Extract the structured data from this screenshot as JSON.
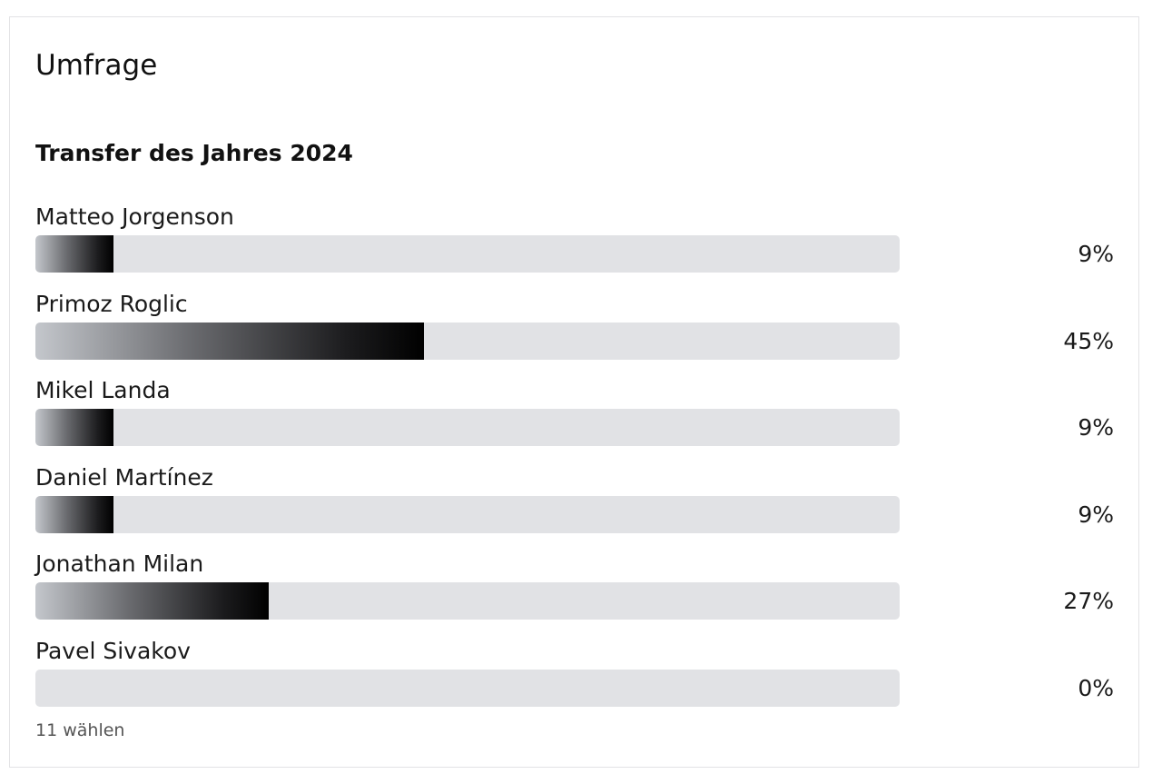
{
  "poll": {
    "title": "Umfrage",
    "question": "Transfer des Jahres 2024",
    "options": [
      {
        "label": "Matteo Jorgenson",
        "percent_text": "9%",
        "percent": 9
      },
      {
        "label": "Primoz Roglic",
        "percent_text": "45%",
        "percent": 45
      },
      {
        "label": "Mikel Landa",
        "percent_text": "9%",
        "percent": 9
      },
      {
        "label": "Daniel Martínez",
        "percent_text": "9%",
        "percent": 9
      },
      {
        "label": "Jonathan Milan",
        "percent_text": "27%",
        "percent": 27
      },
      {
        "label": "Pavel Sivakov",
        "percent_text": "0%",
        "percent": 0
      }
    ],
    "votes_text": "11 wählen"
  },
  "colors": {
    "track": "#e1e2e5",
    "fill_start": "#c4c7cc",
    "fill_end": "#000000",
    "text": "#111111",
    "muted_text": "#555555"
  }
}
